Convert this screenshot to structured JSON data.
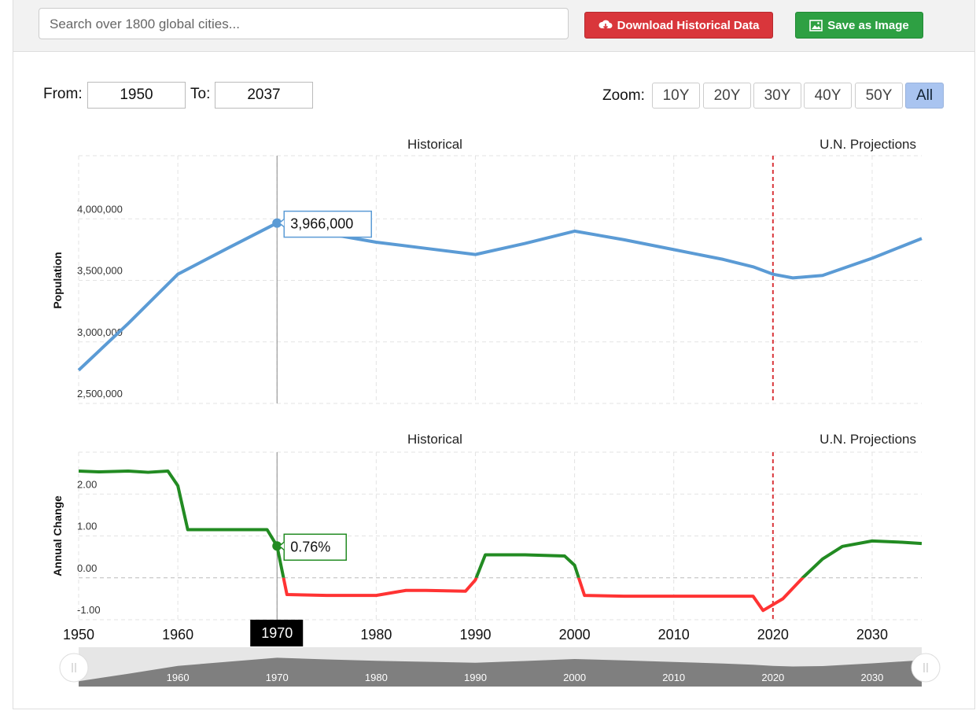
{
  "search_placeholder": "Search over 1800 global cities...",
  "buttons": {
    "download": "Download Historical Data",
    "save": "Save as Image"
  },
  "range": {
    "from_label": "From:",
    "from": "1950",
    "to_label": "To:",
    "to": "2037"
  },
  "zoom": {
    "label": "Zoom:",
    "options": [
      "10Y",
      "20Y",
      "30Y",
      "40Y",
      "50Y",
      "All"
    ],
    "active": "All"
  },
  "crosshair": {
    "x": 1970
  },
  "chart_data": [
    {
      "type": "line",
      "y_label": "Population",
      "annotations": [
        "Historical",
        "U.N. Projections"
      ],
      "projection_start": 2020,
      "color": "#5b9bd5",
      "x": [
        1950,
        1955,
        1960,
        1965,
        1970,
        1975,
        1980,
        1985,
        1990,
        1995,
        2000,
        2005,
        2010,
        2015,
        2018,
        2020,
        2022,
        2025,
        2030,
        2035
      ],
      "values": [
        2770000,
        3150000,
        3550000,
        3760000,
        3966000,
        3880000,
        3810000,
        3760000,
        3710000,
        3800000,
        3900000,
        3830000,
        3750000,
        3670000,
        3610000,
        3550000,
        3520000,
        3540000,
        3680000,
        3840000
      ],
      "xlim": [
        1950,
        2035
      ],
      "xticks": [
        1950,
        1960,
        1970,
        1980,
        1990,
        2000,
        2010,
        2020,
        2030
      ],
      "ylim": [
        2500000,
        4500000
      ],
      "yticks": [
        {
          "value": 2500000,
          "label": "2,500,000"
        },
        {
          "value": 3000000,
          "label": "3,000,000"
        },
        {
          "value": 3500000,
          "label": "3,500,000"
        },
        {
          "value": 4000000,
          "label": "4,000,000"
        }
      ],
      "grid": true,
      "tooltip": "3,966,000"
    },
    {
      "type": "signed_line",
      "y_label": "Annual Change",
      "annotations": [
        "Historical",
        "U.N. Projections"
      ],
      "projection_start": 2020,
      "color": "#228b22",
      "negative_color": "#ff3333",
      "x": [
        1950,
        1952,
        1955,
        1957,
        1959,
        1960,
        1961,
        1965,
        1969,
        1970,
        1971,
        1975,
        1980,
        1983,
        1985,
        1989,
        1990,
        1991,
        1995,
        1999,
        2000,
        2001,
        2005,
        2010,
        2015,
        2018,
        2019,
        2021,
        2023,
        2025,
        2027,
        2030,
        2033,
        2035
      ],
      "values": [
        2.55,
        2.53,
        2.55,
        2.52,
        2.55,
        2.2,
        1.15,
        1.15,
        1.15,
        0.76,
        -0.4,
        -0.42,
        -0.42,
        -0.3,
        -0.3,
        -0.32,
        -0.05,
        0.55,
        0.55,
        0.52,
        0.3,
        -0.42,
        -0.44,
        -0.44,
        -0.44,
        -0.44,
        -0.78,
        -0.5,
        0.0,
        0.45,
        0.75,
        0.88,
        0.85,
        0.82
      ],
      "xlim": [
        1950,
        2035
      ],
      "xticks": [
        1950,
        1960,
        1970,
        1980,
        1990,
        2000,
        2010,
        2020,
        2030
      ],
      "ylim": [
        -1,
        3
      ],
      "yticks": [
        {
          "value": -1,
          "label": "-1.00"
        },
        {
          "value": 0,
          "label": "0.00"
        },
        {
          "value": 1,
          "label": "1.00"
        },
        {
          "value": 2,
          "label": "2.00"
        }
      ],
      "grid": true,
      "tooltip": "0.76%"
    }
  ]
}
